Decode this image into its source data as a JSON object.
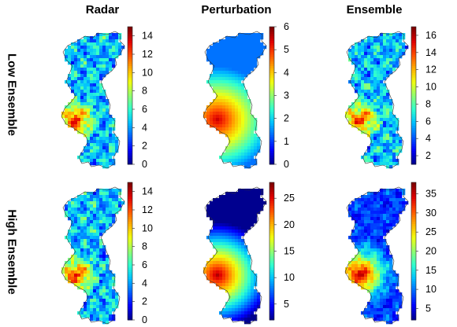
{
  "columns": [
    "Radar",
    "Perturbation",
    "Ensemble"
  ],
  "rows": [
    "Low Ensemble",
    "High Ensemble"
  ],
  "colormap": [
    "#00008f",
    "#0000ff",
    "#0060ff",
    "#00c0ff",
    "#30ffcf",
    "#90ff70",
    "#f0ff10",
    "#ffb000",
    "#ff5000",
    "#e00000",
    "#800000"
  ],
  "panels": [
    {
      "id": "low-radar",
      "row": "Low Ensemble",
      "column": "Radar",
      "ticks": [
        "0",
        "2",
        "4",
        "6",
        "8",
        "10",
        "12",
        "14"
      ],
      "colorbar_min": 0,
      "colorbar_max": 15
    },
    {
      "id": "low-perturbation",
      "row": "Low Ensemble",
      "column": "Perturbation",
      "ticks": [
        "0",
        "1",
        "2",
        "3",
        "4",
        "5",
        "6"
      ],
      "colorbar_min": 0,
      "colorbar_max": 6
    },
    {
      "id": "low-ensemble",
      "row": "Low Ensemble",
      "column": "Ensemble",
      "ticks": [
        "2",
        "4",
        "6",
        "8",
        "10",
        "12",
        "14",
        "16"
      ],
      "colorbar_min": 1,
      "colorbar_max": 17
    },
    {
      "id": "high-radar",
      "row": "High Ensemble",
      "column": "Radar",
      "ticks": [
        "0",
        "2",
        "4",
        "6",
        "8",
        "10",
        "12",
        "14"
      ],
      "colorbar_min": 0,
      "colorbar_max": 15
    },
    {
      "id": "high-perturbation",
      "row": "High Ensemble",
      "column": "Perturbation",
      "ticks": [
        "5",
        "10",
        "15",
        "20",
        "25"
      ],
      "colorbar_min": 2,
      "colorbar_max": 28
    },
    {
      "id": "high-ensemble",
      "row": "High Ensemble",
      "column": "Ensemble",
      "ticks": [
        "5",
        "10",
        "15",
        "20",
        "25",
        "30",
        "35"
      ],
      "colorbar_min": 2,
      "colorbar_max": 38
    }
  ]
}
